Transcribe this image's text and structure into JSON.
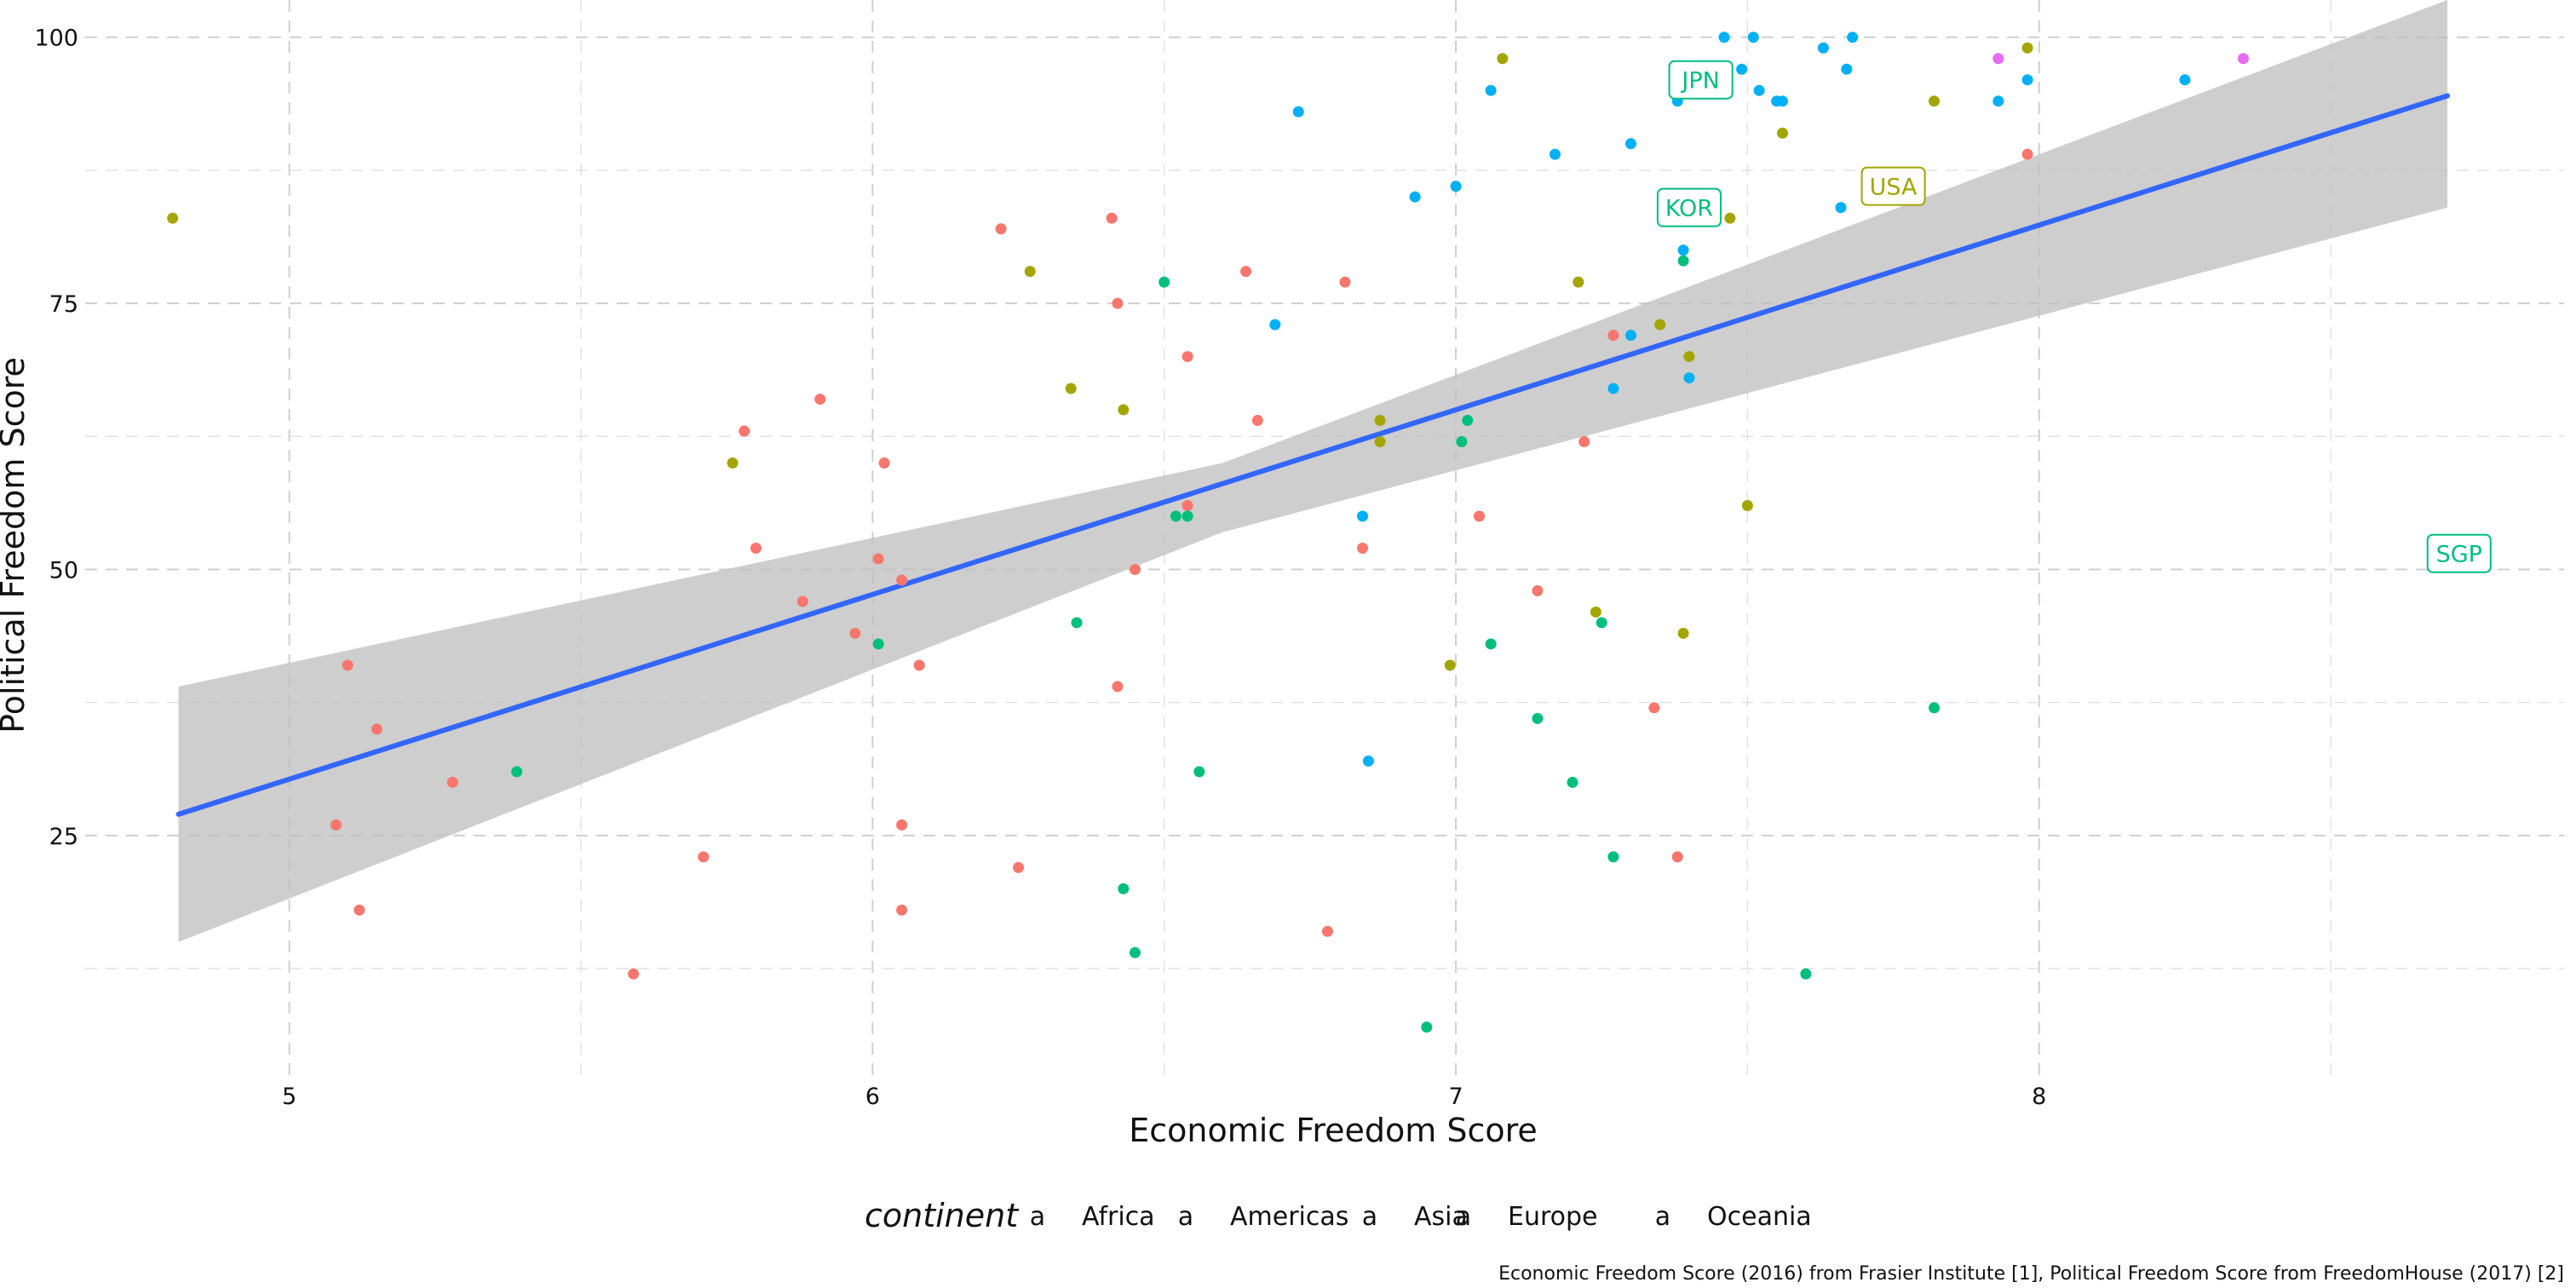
{
  "chart_data": {
    "type": "scatter",
    "xlabel": "Economic Freedom Score",
    "ylabel": "Political Freedom Score",
    "xlim": [
      4.65,
      8.9
    ],
    "ylim": [
      2.5,
      103.5
    ],
    "x_ticks": [
      5,
      6,
      7,
      8
    ],
    "x_tick_labels": [
      "5",
      "6",
      "7",
      "8"
    ],
    "x_minor_grid": [
      5.5,
      6.5,
      7.5,
      8.5
    ],
    "y_ticks": [
      25,
      50,
      75,
      100
    ],
    "y_tick_labels": [
      "25",
      "50",
      "75",
      "100"
    ],
    "y_minor_grid": [
      12.5,
      37.5,
      62.5,
      87.5
    ],
    "grid": true,
    "legend": {
      "title": "continent",
      "position": "bottom",
      "key_glyph": "a",
      "entries": [
        {
          "name": "Africa",
          "color": "#F8766D"
        },
        {
          "name": "Americas",
          "color": "#A3A500"
        },
        {
          "name": "Asia",
          "color": "#00BF7D"
        },
        {
          "name": "Europe",
          "color": "#00B0F6"
        },
        {
          "name": "Oceania",
          "color": "#E76BF3"
        }
      ]
    },
    "caption": "Economic Freedom Score (2016) from Frasier Institute [1], Political Freedom Score from FreedomHouse (2017) [2]",
    "trend_line": {
      "method": "linear",
      "color": "#3366FF",
      "points": [
        [
          4.81,
          27
        ],
        [
          8.7,
          94.5
        ]
      ],
      "ribbon_color": "#BDBDBD",
      "ribbon_lower": [
        [
          4.81,
          15
        ],
        [
          6.6,
          53.5
        ],
        [
          8.7,
          84
        ]
      ],
      "ribbon_upper": [
        [
          4.81,
          39
        ],
        [
          6.6,
          60
        ],
        [
          8.7,
          105.5
        ]
      ]
    },
    "labels": [
      {
        "text": "JPN",
        "x": 7.42,
        "y": 96,
        "series": "Asia"
      },
      {
        "text": "KOR",
        "x": 7.4,
        "y": 84,
        "series": "Asia"
      },
      {
        "text": "USA",
        "x": 7.75,
        "y": 86,
        "series": "Americas"
      },
      {
        "text": "SGP",
        "x": 8.72,
        "y": 51.5,
        "series": "Asia"
      }
    ],
    "series": [
      {
        "name": "Africa",
        "color": "#F8766D",
        "points": [
          [
            5.08,
            26
          ],
          [
            5.1,
            41
          ],
          [
            5.12,
            18
          ],
          [
            5.15,
            35
          ],
          [
            5.28,
            30
          ],
          [
            5.59,
            12
          ],
          [
            5.71,
            23
          ],
          [
            5.78,
            63
          ],
          [
            5.8,
            52
          ],
          [
            5.88,
            47
          ],
          [
            5.91,
            66
          ],
          [
            5.97,
            44
          ],
          [
            6.01,
            51
          ],
          [
            6.02,
            60
          ],
          [
            6.05,
            49
          ],
          [
            6.05,
            26
          ],
          [
            6.05,
            18
          ],
          [
            6.08,
            41
          ],
          [
            6.22,
            82
          ],
          [
            6.25,
            22
          ],
          [
            6.41,
            83
          ],
          [
            6.42,
            75
          ],
          [
            6.42,
            39
          ],
          [
            6.45,
            50
          ],
          [
            6.54,
            70
          ],
          [
            6.54,
            56
          ],
          [
            6.64,
            78
          ],
          [
            6.66,
            64
          ],
          [
            6.78,
            16
          ],
          [
            6.81,
            77
          ],
          [
            6.84,
            52
          ],
          [
            7.04,
            55
          ],
          [
            7.14,
            48
          ],
          [
            7.22,
            62
          ],
          [
            7.27,
            72
          ],
          [
            7.34,
            37
          ],
          [
            7.38,
            23
          ],
          [
            7.98,
            89
          ]
        ]
      },
      {
        "name": "Americas",
        "color": "#A3A500",
        "points": [
          [
            4.8,
            83
          ],
          [
            5.76,
            60
          ],
          [
            6.27,
            78
          ],
          [
            6.34,
            67
          ],
          [
            6.43,
            65
          ],
          [
            6.87,
            64
          ],
          [
            6.87,
            62
          ],
          [
            6.99,
            41
          ],
          [
            7.08,
            98
          ],
          [
            7.21,
            77
          ],
          [
            7.24,
            46
          ],
          [
            7.35,
            73
          ],
          [
            7.39,
            44
          ],
          [
            7.4,
            70
          ],
          [
            7.47,
            83
          ],
          [
            7.5,
            56
          ],
          [
            7.56,
            91
          ],
          [
            7.82,
            94
          ],
          [
            7.98,
            99
          ]
        ]
      },
      {
        "name": "Asia",
        "color": "#00BF7D",
        "points": [
          [
            5.39,
            31
          ],
          [
            6.01,
            43
          ],
          [
            6.35,
            45
          ],
          [
            6.43,
            20
          ],
          [
            6.45,
            14
          ],
          [
            6.5,
            77
          ],
          [
            6.52,
            55
          ],
          [
            6.54,
            55
          ],
          [
            6.56,
            31
          ],
          [
            6.95,
            7
          ],
          [
            7.01,
            62
          ],
          [
            7.02,
            64
          ],
          [
            7.06,
            43
          ],
          [
            7.14,
            36
          ],
          [
            7.2,
            30
          ],
          [
            7.25,
            45
          ],
          [
            7.27,
            23
          ],
          [
            7.39,
            79
          ],
          [
            7.6,
            12
          ],
          [
            7.82,
            37
          ]
        ]
      },
      {
        "name": "Europe",
        "color": "#00B0F6",
        "points": [
          [
            6.69,
            73
          ],
          [
            6.73,
            93
          ],
          [
            6.84,
            55
          ],
          [
            6.85,
            32
          ],
          [
            6.93,
            85
          ],
          [
            7.0,
            86
          ],
          [
            7.06,
            95
          ],
          [
            7.17,
            89
          ],
          [
            7.27,
            67
          ],
          [
            7.3,
            72
          ],
          [
            7.3,
            90
          ],
          [
            7.38,
            94
          ],
          [
            7.39,
            80
          ],
          [
            7.4,
            68
          ],
          [
            7.46,
            100
          ],
          [
            7.49,
            97
          ],
          [
            7.51,
            100
          ],
          [
            7.52,
            95
          ],
          [
            7.55,
            94
          ],
          [
            7.56,
            94
          ],
          [
            7.63,
            99
          ],
          [
            7.66,
            84
          ],
          [
            7.67,
            97
          ],
          [
            7.68,
            100
          ],
          [
            7.93,
            94
          ],
          [
            7.98,
            96
          ],
          [
            8.25,
            96
          ]
        ]
      },
      {
        "name": "Oceania",
        "color": "#E76BF3",
        "points": [
          [
            7.93,
            98
          ],
          [
            8.35,
            98
          ]
        ]
      }
    ]
  }
}
